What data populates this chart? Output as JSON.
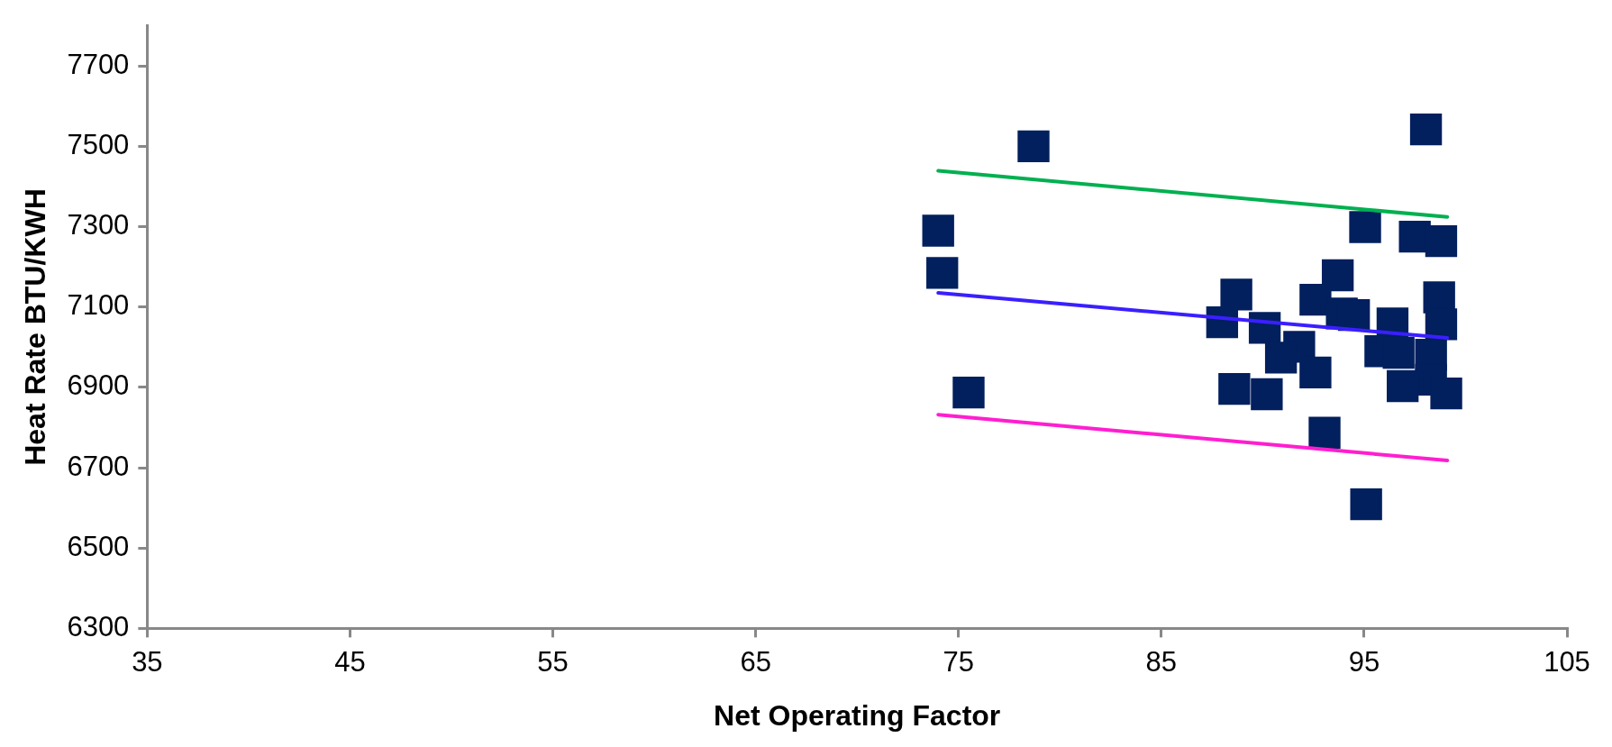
{
  "chart_data": {
    "type": "scatter",
    "xlabel": "Net Operating Factor",
    "ylabel": "Heat Rate BTU/KWH",
    "grid": false,
    "legend": false,
    "xlim": [
      35,
      105
    ],
    "xticks": [
      35,
      45,
      55,
      65,
      75,
      85,
      95,
      105
    ],
    "ylim": [
      6300,
      7800
    ],
    "yticks": [
      6300,
      6500,
      6700,
      6900,
      7100,
      7300,
      7500,
      7700
    ],
    "series": [
      {
        "type": "scatter",
        "marker": "square",
        "color": "#021f5e",
        "x": [
          78.7,
          98.05,
          74.0,
          74.2,
          75.5,
          95.05,
          97.5,
          98.8,
          93.7,
          88.7,
          92.6,
          93.9,
          94.5,
          88.0,
          98.7,
          98.8,
          96.4,
          90.1,
          91.8,
          90.9,
          95.8,
          96.7,
          98.3,
          92.6,
          98.3,
          88.6,
          90.2,
          96.9,
          99.05,
          93.05,
          95.1
        ],
        "values": [
          7500,
          7542,
          7290,
          7185,
          6887,
          7299,
          7275,
          7264,
          7179,
          7131,
          7118,
          7084,
          7080,
          7062,
          7124,
          7057,
          7059,
          7048,
          7001,
          6974,
          6990,
          6986,
          6981,
          6937,
          6919,
          6896,
          6883,
          6903,
          6885,
          6787,
          6609
        ]
      },
      {
        "type": "line",
        "marker": "none",
        "color": "#00b050",
        "x": [
          74.0,
          99.1
        ],
        "values": [
          7439,
          7324
        ]
      },
      {
        "type": "line",
        "marker": "none",
        "color": "#3a1fff",
        "x": [
          74.0,
          99.1
        ],
        "values": [
          7135,
          7023
        ]
      },
      {
        "type": "line",
        "marker": "none",
        "color": "#ff1ecf",
        "x": [
          74.0,
          99.1
        ],
        "values": [
          6832,
          6718
        ]
      }
    ]
  }
}
